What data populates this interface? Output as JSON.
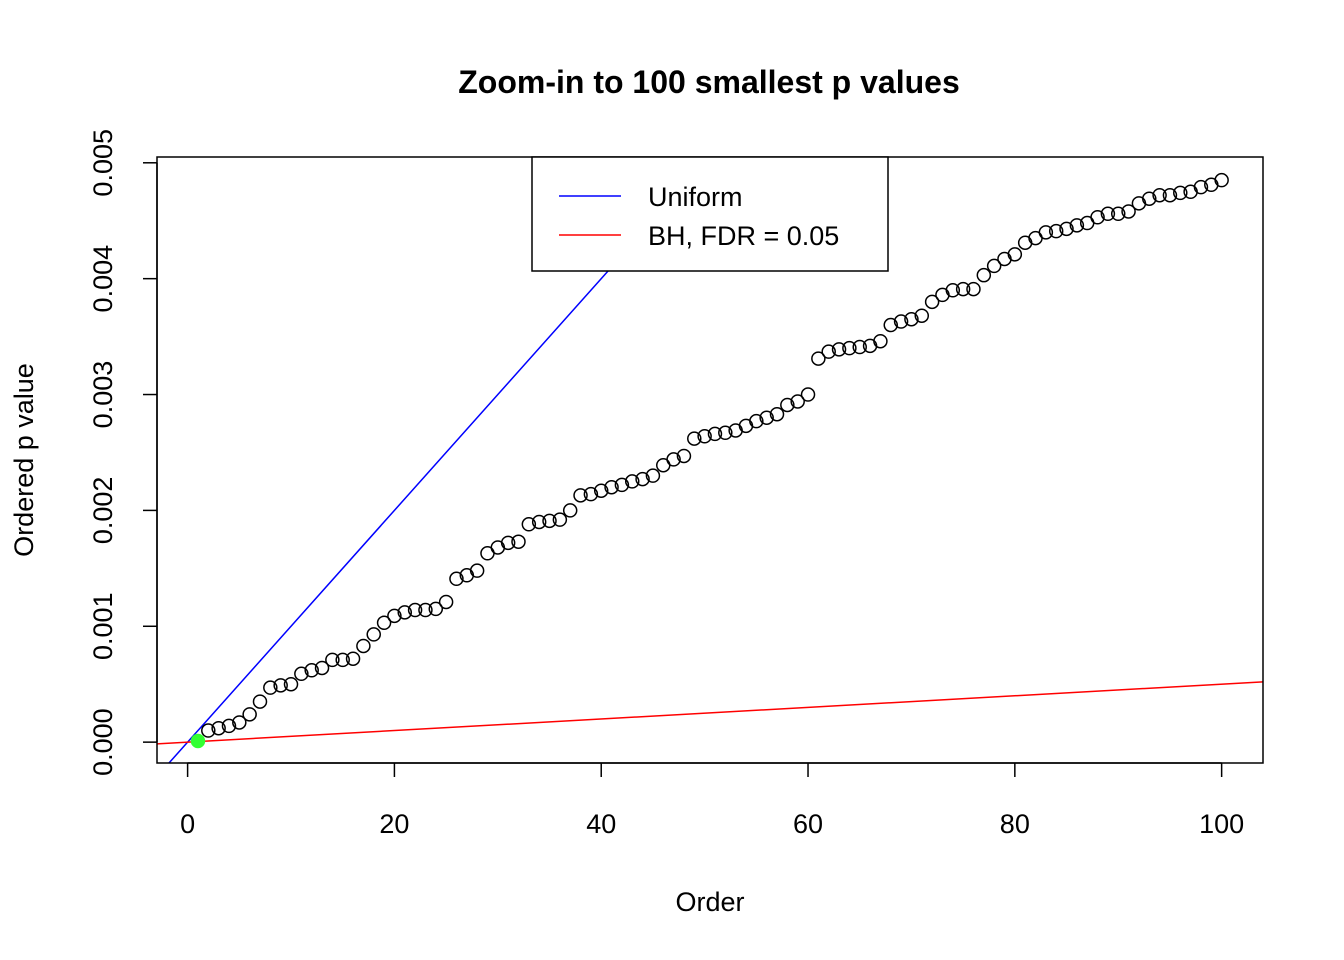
{
  "chart_data": {
    "type": "scatter",
    "title": "Zoom-in to 100 smallest p values",
    "xlabel": "Order",
    "ylabel": "Ordered p value",
    "xlim": [
      -2.96,
      104
    ],
    "ylim": [
      -0.00018,
      0.00505
    ],
    "x_ticks": [
      {
        "value": 0,
        "label": "0"
      },
      {
        "value": 20,
        "label": "20"
      },
      {
        "value": 40,
        "label": "40"
      },
      {
        "value": 60,
        "label": "60"
      },
      {
        "value": 80,
        "label": "80"
      },
      {
        "value": 100,
        "label": "100"
      }
    ],
    "y_ticks": [
      {
        "value": 0,
        "label": "0.000"
      },
      {
        "value": 0.001,
        "label": "0.001"
      },
      {
        "value": 0.002,
        "label": "0.002"
      },
      {
        "value": 0.003,
        "label": "0.003"
      },
      {
        "value": 0.004,
        "label": "0.004"
      },
      {
        "value": 0.005,
        "label": "0.005"
      }
    ],
    "points": {
      "x": [
        1,
        2,
        3,
        4,
        5,
        6,
        7,
        8,
        9,
        10,
        11,
        12,
        13,
        14,
        15,
        16,
        17,
        18,
        19,
        20,
        21,
        22,
        23,
        24,
        25,
        26,
        27,
        28,
        29,
        30,
        31,
        32,
        33,
        34,
        35,
        36,
        37,
        38,
        39,
        40,
        41,
        42,
        43,
        44,
        45,
        46,
        47,
        48,
        49,
        50,
        51,
        52,
        53,
        54,
        55,
        56,
        57,
        58,
        59,
        60,
        61,
        62,
        63,
        64,
        65,
        66,
        67,
        68,
        69,
        70,
        71,
        72,
        73,
        74,
        75,
        76,
        77,
        78,
        79,
        80,
        81,
        82,
        83,
        84,
        85,
        86,
        87,
        88,
        89,
        90,
        91,
        92,
        93,
        94,
        95,
        96,
        97,
        98,
        99,
        100
      ],
      "y": [
        1e-05,
        0.0001,
        0.00012,
        0.00014,
        0.00017,
        0.00024,
        0.00035,
        0.00047,
        0.00049,
        0.0005,
        0.00059,
        0.00062,
        0.00064,
        0.00071,
        0.00071,
        0.00072,
        0.00083,
        0.00093,
        0.00103,
        0.00109,
        0.00112,
        0.00114,
        0.00114,
        0.00115,
        0.00121,
        0.00141,
        0.00144,
        0.00148,
        0.00163,
        0.00168,
        0.00172,
        0.00173,
        0.00188,
        0.0019,
        0.00191,
        0.00192,
        0.002,
        0.00213,
        0.00214,
        0.00217,
        0.0022,
        0.00222,
        0.00225,
        0.00227,
        0.0023,
        0.00239,
        0.00244,
        0.00247,
        0.00262,
        0.00264,
        0.00266,
        0.00267,
        0.00269,
        0.00273,
        0.00277,
        0.0028,
        0.00283,
        0.00291,
        0.00294,
        0.003,
        0.00331,
        0.00337,
        0.00339,
        0.0034,
        0.00341,
        0.00342,
        0.00346,
        0.0036,
        0.00363,
        0.00365,
        0.00368,
        0.0038,
        0.00386,
        0.0039,
        0.00391,
        0.00391,
        0.00403,
        0.00411,
        0.00417,
        0.00421,
        0.00431,
        0.00435,
        0.0044,
        0.00441,
        0.00443,
        0.00446,
        0.00448,
        0.00453,
        0.00456,
        0.00456,
        0.00458,
        0.00465,
        0.00469,
        0.00472,
        0.00472,
        0.00474,
        0.00475,
        0.00479,
        0.00481,
        0.00485
      ],
      "highlight_index": 0,
      "highlight_color": "#33ff33",
      "marker_color": "#000000"
    },
    "lines": [
      {
        "name": "Uniform",
        "slope": 0.0001,
        "intercept": 0,
        "color": "#0000ff"
      },
      {
        "name": "BH, FDR = 0.05",
        "slope": 5e-06,
        "intercept": 0,
        "color": "#ff0000"
      }
    ],
    "legend": {
      "position": "top",
      "entries": [
        "Uniform",
        "BH, FDR = 0.05"
      ]
    }
  }
}
